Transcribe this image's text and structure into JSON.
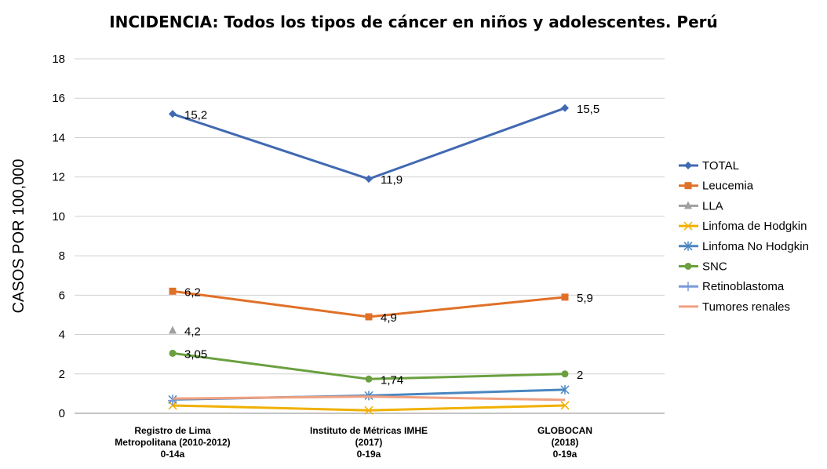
{
  "chart_data": {
    "type": "line",
    "title": "INCIDENCIA: Todos los tipos de cáncer en niños y adolescentes. Perú",
    "ylabel": "CASOS POR 100,000",
    "xlabel": "",
    "ylim": [
      0,
      18
    ],
    "yticks": [
      "0",
      "2",
      "4",
      "6",
      "8",
      "10",
      "12",
      "14",
      "16",
      "18"
    ],
    "grid": true,
    "legend_position": "right",
    "categories": [
      [
        "Registro de Lima",
        "Metropolitana (2010-2012)",
        "0-14a"
      ],
      [
        "Instituto de Métricas IMHE",
        "(2017)",
        "0-19a"
      ],
      [
        "GLOBOCAN",
        "(2018)",
        "0-19a"
      ]
    ],
    "series": [
      {
        "name": "TOTAL",
        "color": "#4169b3",
        "marker": "diamond",
        "values": [
          15.2,
          11.9,
          15.5
        ],
        "labels": [
          "15,2",
          "11,9",
          "15,5"
        ]
      },
      {
        "name": "Leucemia",
        "color": "#e07028",
        "marker": "square",
        "values": [
          6.2,
          4.9,
          5.9
        ],
        "labels": [
          "6,2",
          "4,9",
          "5,9"
        ]
      },
      {
        "name": "LLA",
        "color": "#a0a0a0",
        "marker": "triangle",
        "values": [
          4.2,
          null,
          null
        ],
        "labels": [
          "4,2",
          "",
          ""
        ]
      },
      {
        "name": "Linfoma de Hodgkin",
        "color": "#f0b000",
        "marker": "x",
        "values": [
          0.4,
          0.15,
          0.4
        ],
        "labels": [
          "",
          "",
          ""
        ]
      },
      {
        "name": "Linfoma No Hodgkin",
        "color": "#4a86c0",
        "marker": "star",
        "values": [
          0.7,
          0.9,
          1.2
        ],
        "labels": [
          "",
          "",
          ""
        ]
      },
      {
        "name": "SNC",
        "color": "#6aa040",
        "marker": "circle",
        "values": [
          3.05,
          1.74,
          2
        ],
        "labels": [
          "3,05",
          "1,74",
          "2"
        ]
      },
      {
        "name": "Retinoblastoma",
        "color": "#7a9ad8",
        "marker": "plus",
        "values": [
          0.65,
          null,
          null
        ],
        "labels": [
          "",
          "",
          ""
        ]
      },
      {
        "name": "Tumores renales",
        "color": "#f0a080",
        "marker": "none",
        "values": [
          0.75,
          0.85,
          0.68
        ],
        "labels": [
          "",
          "",
          ""
        ]
      }
    ]
  }
}
